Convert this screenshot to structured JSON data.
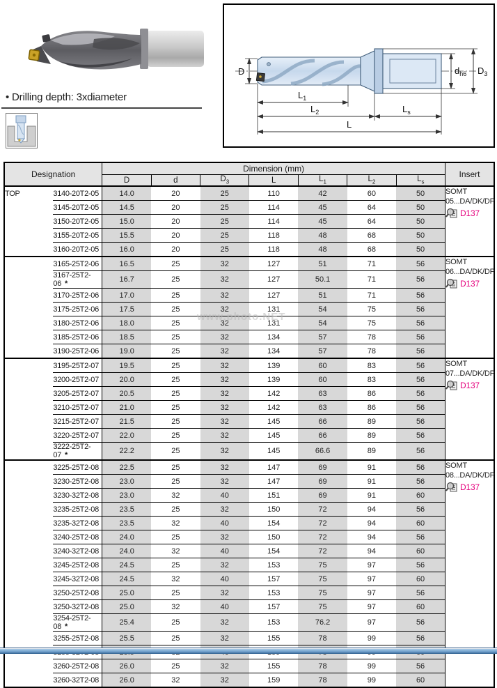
{
  "page": {
    "bullet_note": "• Drilling depth: 3xdiameter",
    "watermark": "www.photo.NET"
  },
  "diagram": {
    "dim_labels": [
      {
        "id": "D",
        "base": "D",
        "sub": ""
      },
      {
        "id": "dh6",
        "base": "d",
        "sub": "h6"
      },
      {
        "id": "D3",
        "base": "D",
        "sub": "3"
      },
      {
        "id": "L1",
        "base": "L",
        "sub": "1"
      },
      {
        "id": "L2",
        "base": "L",
        "sub": "2"
      },
      {
        "id": "Ls",
        "base": "L",
        "sub": "s"
      },
      {
        "id": "L",
        "base": "L",
        "sub": ""
      }
    ]
  },
  "table": {
    "header": {
      "designation": "Designation",
      "dimension": "Dimension (mm)",
      "insert": "Insert"
    },
    "dim_cols": [
      {
        "base": "D",
        "sub": ""
      },
      {
        "base": "d",
        "sub": ""
      },
      {
        "base": "D",
        "sub": "3"
      },
      {
        "base": "L",
        "sub": ""
      },
      {
        "base": "L",
        "sub": "1"
      },
      {
        "base": "L",
        "sub": "2"
      },
      {
        "base": "L",
        "sub": "s"
      }
    ],
    "brand_prefix": "TOP",
    "rows": [
      {
        "designation": "3140-20T2-05",
        "star": false,
        "values": [
          "14.0",
          "20",
          "25",
          "110",
          "42",
          "60",
          "50"
        ]
      },
      {
        "designation": "3145-20T2-05",
        "star": false,
        "values": [
          "14.5",
          "20",
          "25",
          "114",
          "45",
          "64",
          "50"
        ]
      },
      {
        "designation": "3150-20T2-05",
        "star": false,
        "values": [
          "15.0",
          "20",
          "25",
          "114",
          "45",
          "64",
          "50"
        ]
      },
      {
        "designation": "3155-20T2-05",
        "star": false,
        "values": [
          "15.5",
          "20",
          "25",
          "118",
          "48",
          "68",
          "50"
        ]
      },
      {
        "designation": "3160-20T2-05",
        "star": false,
        "values": [
          "16.0",
          "20",
          "25",
          "118",
          "48",
          "68",
          "50"
        ]
      },
      {
        "designation": "3165-25T2-06",
        "star": false,
        "values": [
          "16.5",
          "25",
          "32",
          "127",
          "51",
          "71",
          "56"
        ]
      },
      {
        "designation": "3167-25T2-06",
        "star": true,
        "values": [
          "16.7",
          "25",
          "32",
          "127",
          "50.1",
          "71",
          "56"
        ]
      },
      {
        "designation": "3170-25T2-06",
        "star": false,
        "values": [
          "17.0",
          "25",
          "32",
          "127",
          "51",
          "71",
          "56"
        ]
      },
      {
        "designation": "3175-25T2-06",
        "star": false,
        "values": [
          "17.5",
          "25",
          "32",
          "131",
          "54",
          "75",
          "56"
        ]
      },
      {
        "designation": "3180-25T2-06",
        "star": false,
        "values": [
          "18.0",
          "25",
          "32",
          "131",
          "54",
          "75",
          "56"
        ]
      },
      {
        "designation": "3185-25T2-06",
        "star": false,
        "values": [
          "18.5",
          "25",
          "32",
          "134",
          "57",
          "78",
          "56"
        ]
      },
      {
        "designation": "3190-25T2-06",
        "star": false,
        "values": [
          "19.0",
          "25",
          "32",
          "134",
          "57",
          "78",
          "56"
        ]
      },
      {
        "designation": "3195-25T2-07",
        "star": false,
        "values": [
          "19.5",
          "25",
          "32",
          "139",
          "60",
          "83",
          "56"
        ]
      },
      {
        "designation": "3200-25T2-07",
        "star": false,
        "values": [
          "20.0",
          "25",
          "32",
          "139",
          "60",
          "83",
          "56"
        ]
      },
      {
        "designation": "3205-25T2-07",
        "star": false,
        "values": [
          "20.5",
          "25",
          "32",
          "142",
          "63",
          "86",
          "56"
        ]
      },
      {
        "designation": "3210-25T2-07",
        "star": false,
        "values": [
          "21.0",
          "25",
          "32",
          "142",
          "63",
          "86",
          "56"
        ]
      },
      {
        "designation": "3215-25T2-07",
        "star": false,
        "values": [
          "21.5",
          "25",
          "32",
          "145",
          "66",
          "89",
          "56"
        ]
      },
      {
        "designation": "3220-25T2-07",
        "star": false,
        "values": [
          "22.0",
          "25",
          "32",
          "145",
          "66",
          "89",
          "56"
        ]
      },
      {
        "designation": "3222-25T2-07",
        "star": true,
        "values": [
          "22.2",
          "25",
          "32",
          "145",
          "66.6",
          "89",
          "56"
        ]
      },
      {
        "designation": "3225-25T2-08",
        "star": false,
        "values": [
          "22.5",
          "25",
          "32",
          "147",
          "69",
          "91",
          "56"
        ]
      },
      {
        "designation": "3230-25T2-08",
        "star": false,
        "values": [
          "23.0",
          "25",
          "32",
          "147",
          "69",
          "91",
          "56"
        ]
      },
      {
        "designation": "3230-32T2-08",
        "star": false,
        "values": [
          "23.0",
          "32",
          "40",
          "151",
          "69",
          "91",
          "60"
        ]
      },
      {
        "designation": "3235-25T2-08",
        "star": false,
        "values": [
          "23.5",
          "25",
          "32",
          "150",
          "72",
          "94",
          "56"
        ]
      },
      {
        "designation": "3235-32T2-08",
        "star": false,
        "values": [
          "23.5",
          "32",
          "40",
          "154",
          "72",
          "94",
          "60"
        ]
      },
      {
        "designation": "3240-25T2-08",
        "star": false,
        "values": [
          "24.0",
          "25",
          "32",
          "150",
          "72",
          "94",
          "56"
        ]
      },
      {
        "designation": "3240-32T2-08",
        "star": false,
        "values": [
          "24.0",
          "32",
          "40",
          "154",
          "72",
          "94",
          "60"
        ]
      },
      {
        "designation": "3245-25T2-08",
        "star": false,
        "values": [
          "24.5",
          "25",
          "32",
          "153",
          "75",
          "97",
          "56"
        ]
      },
      {
        "designation": "3245-32T2-08",
        "star": false,
        "values": [
          "24.5",
          "32",
          "40",
          "157",
          "75",
          "97",
          "60"
        ]
      },
      {
        "designation": "3250-25T2-08",
        "star": false,
        "values": [
          "25.0",
          "25",
          "32",
          "153",
          "75",
          "97",
          "56"
        ]
      },
      {
        "designation": "3250-32T2-08",
        "star": false,
        "values": [
          "25.0",
          "32",
          "40",
          "157",
          "75",
          "97",
          "60"
        ]
      },
      {
        "designation": "3254-25T2-08",
        "star": true,
        "values": [
          "25.4",
          "25",
          "32",
          "153",
          "76.2",
          "97",
          "56"
        ]
      },
      {
        "designation": "3255-25T2-08",
        "star": false,
        "values": [
          "25.5",
          "25",
          "32",
          "155",
          "78",
          "99",
          "56"
        ]
      },
      {
        "designation": "3255-32T2-08",
        "star": false,
        "values": [
          "25.5",
          "32",
          "40",
          "159",
          "78",
          "99",
          "60"
        ]
      },
      {
        "designation": "3260-25T2-08",
        "star": false,
        "values": [
          "26.0",
          "25",
          "32",
          "155",
          "78",
          "99",
          "56"
        ]
      },
      {
        "designation": "3260-32T2-08",
        "star": false,
        "values": [
          "26.0",
          "32",
          "32",
          "159",
          "78",
          "99",
          "60"
        ]
      }
    ],
    "insert_groups": [
      {
        "start": 0,
        "span": 5,
        "label": "SOMT 05...DA/DK/DP",
        "page_link": "D137"
      },
      {
        "start": 5,
        "span": 7,
        "label": "SOMT 06...DA/DK/DP",
        "page_link": "D137"
      },
      {
        "start": 12,
        "span": 7,
        "label": "SOMT 07...DA/DK/DP",
        "page_link": "D137"
      },
      {
        "start": 19,
        "span": 16,
        "label": "SOMT 08...DA/DK/DP",
        "page_link": "D137"
      }
    ]
  },
  "colors": {
    "link_magenta": "#e5007d",
    "column_shade": "#d8d8d8",
    "header_bg": "#e4e4e4",
    "footer_blue": "#31618f"
  }
}
